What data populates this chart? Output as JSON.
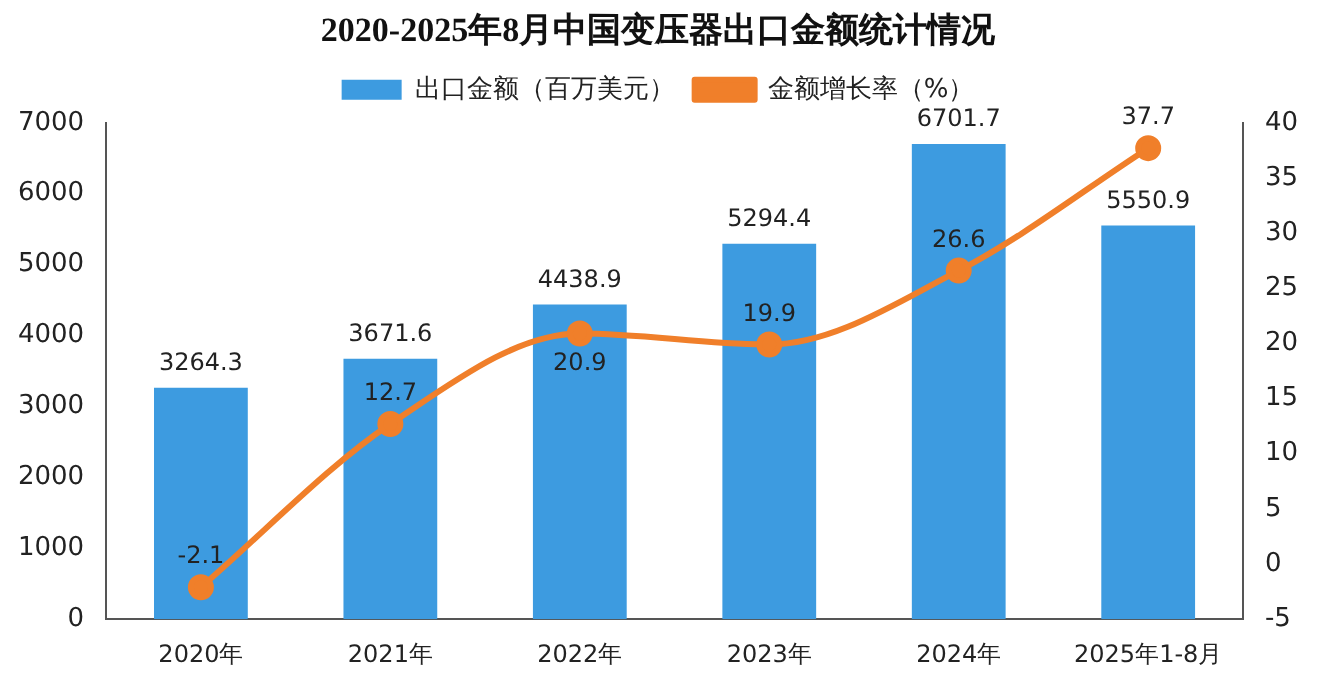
{
  "chart_data": {
    "type": "bar",
    "title": "2020-2025年8月中国变压器出口金额统计情况",
    "categories": [
      "2020年",
      "2021年",
      "2022年",
      "2023年",
      "2024年",
      "2025年1-8月"
    ],
    "series": [
      {
        "name": "出口金额（百万美元）",
        "color": "#3d9be0",
        "values": [
          3264.3,
          3671.6,
          4438.9,
          5294.4,
          6701.7,
          5550.9
        ]
      },
      {
        "name": "金额增长率（%）",
        "type": "line",
        "axis": "y2",
        "color": "#f07f2a",
        "marker": "circle",
        "values": [
          -2.1,
          12.7,
          20.9,
          19.9,
          26.6,
          37.7
        ]
      }
    ],
    "ylim": [
      0,
      7000
    ],
    "yticks": [
      0,
      1000,
      2000,
      3000,
      4000,
      5000,
      6000,
      7000
    ],
    "y2lim": [
      -5,
      40
    ],
    "y2ticks": [
      -5,
      0,
      5,
      10,
      15,
      20,
      25,
      30,
      35,
      40
    ],
    "data_labels": true,
    "legend": "top",
    "grid": false
  }
}
